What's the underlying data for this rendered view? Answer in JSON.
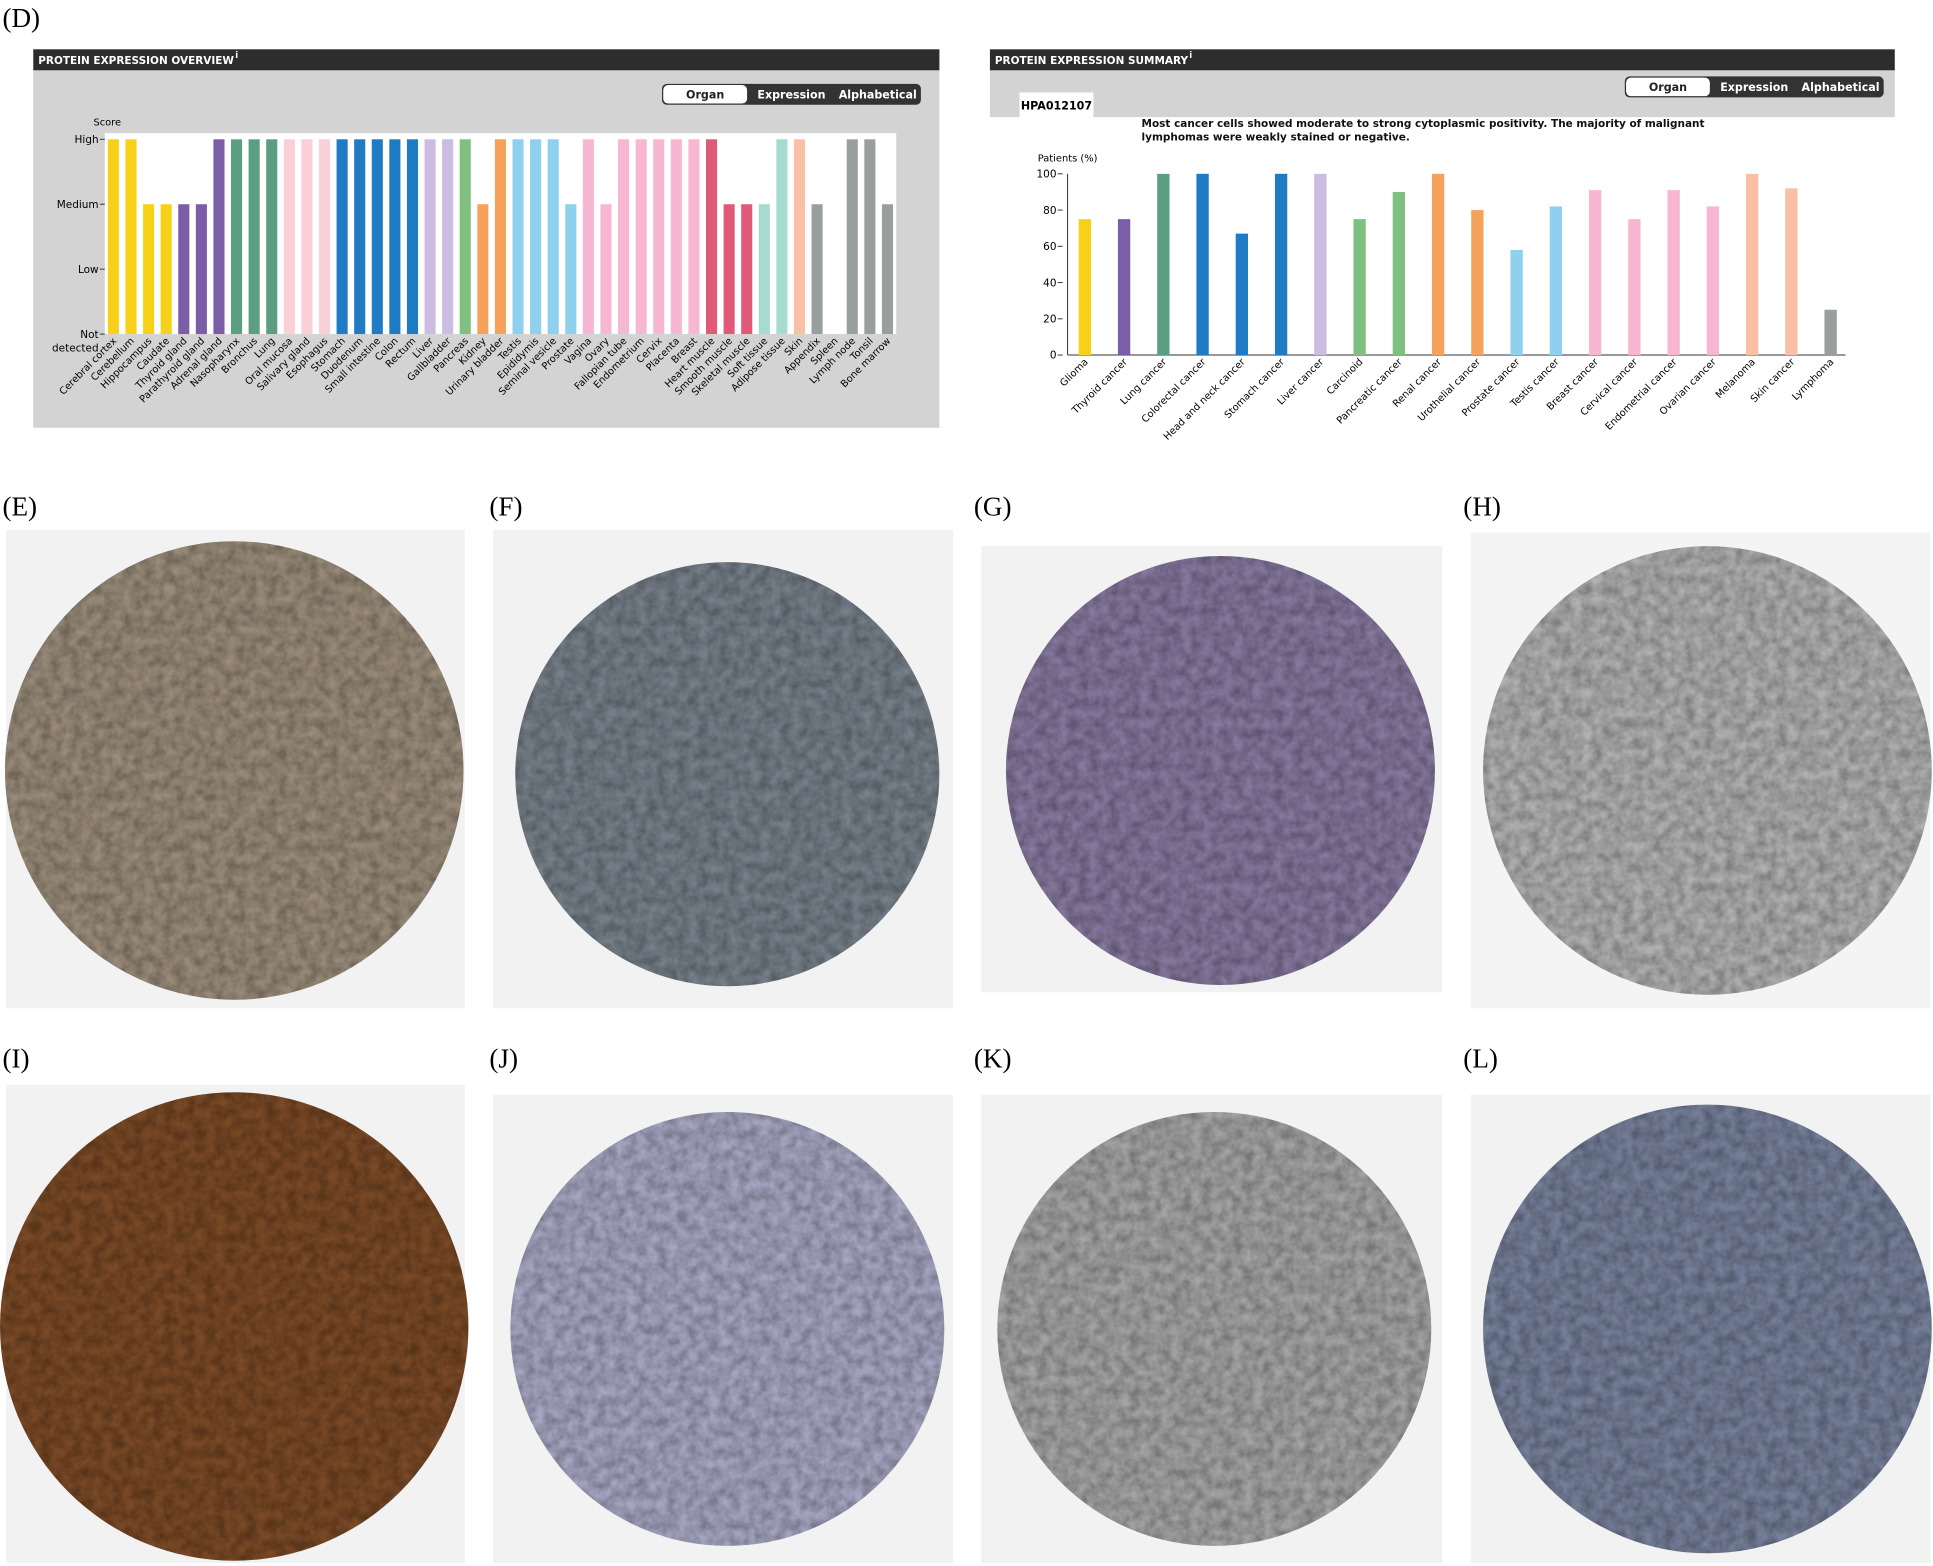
{
  "panel_labels": [
    "(D)",
    "(E)",
    "(F)",
    "(G)",
    "(H)",
    "(I)",
    "(J)",
    "(K)",
    "(L)"
  ],
  "chart_data": [
    {
      "type": "bar",
      "title": "PROTEIN EXPRESSION OVERVIEW",
      "info": "i",
      "buttons": [
        "Organ",
        "Expression",
        "Alphabetical"
      ],
      "y_label": "Score",
      "categories": [
        "Cerebral cortex",
        "Cerebellum",
        "Hippocampus",
        "Caudate",
        "Thyroid gland",
        "Parathyroid gland",
        "Adrenal gland",
        "Nasopharynx",
        "Bronchus",
        "Lung",
        "Oral mucosa",
        "Salivary gland",
        "Esophagus",
        "Stomach",
        "Duodenum",
        "Small intestine",
        "Colon",
        "Rectum",
        "Liver",
        "Gallbladder",
        "Pancreas",
        "Kidney",
        "Urinary bladder",
        "Testis",
        "Epididymis",
        "Seminal vesicle",
        "Prostate",
        "Vagina",
        "Ovary",
        "Fallopian tube",
        "Endometrium",
        "Cervix",
        "Placenta",
        "Breast",
        "Heart muscle",
        "Smooth muscle",
        "Skeletal muscle",
        "Soft tissue",
        "Adipose tissue",
        "Skin",
        "Appendix",
        "Spleen",
        "Lymph node",
        "Tonsil",
        "Bone marrow"
      ],
      "values": [
        3,
        3,
        2,
        2,
        2,
        2,
        3,
        3,
        3,
        3,
        3,
        3,
        3,
        3,
        3,
        3,
        3,
        3,
        3,
        3,
        3,
        2,
        3,
        3,
        3,
        3,
        2,
        3,
        2,
        3,
        3,
        3,
        3,
        3,
        3,
        2,
        2,
        2,
        3,
        3,
        2,
        0,
        3,
        3,
        2
      ],
      "colors": [
        "#f7d117",
        "#f7d117",
        "#f7d117",
        "#f7d117",
        "#7b5ea7",
        "#7b5ea7",
        "#7b5ea7",
        "#5c9e82",
        "#5c9e82",
        "#5c9e82",
        "#f9d0d6",
        "#f9d0d6",
        "#f9d0d6",
        "#1f7cc4",
        "#1f7cc4",
        "#1f7cc4",
        "#1f7cc4",
        "#1f7cc4",
        "#cbbde2",
        "#cbbde2",
        "#7fbf7f",
        "#f5a25d",
        "#f5a25d",
        "#8fd0ef",
        "#8fd0ef",
        "#8fd0ef",
        "#8fd0ef",
        "#f7b6d2",
        "#f7b6d2",
        "#f7b6d2",
        "#f7b6d2",
        "#f7b6d2",
        "#f7b6d2",
        "#f7b6d2",
        "#e05a78",
        "#e05a78",
        "#e05a78",
        "#a6dcd0",
        "#a6dcd0",
        "#f9c0a6",
        "#999f9f",
        "#999f9f",
        "#999f9f",
        "#999f9f",
        "#999f9f"
      ],
      "ylim": [
        0,
        3
      ],
      "yticks": [
        {
          "value": 0,
          "label": "Not detected"
        },
        {
          "value": 1,
          "label": "Low"
        },
        {
          "value": 2,
          "label": "Medium"
        },
        {
          "value": 3,
          "label": "High"
        }
      ]
    },
    {
      "type": "bar",
      "title": "PROTEIN EXPRESSION SUMMARY",
      "info": "i",
      "buttons": [
        "Organ",
        "Expression",
        "Alphabetical"
      ],
      "antibody": "HPA012107",
      "description": "Most cancer cells showed moderate to strong cytoplasmic positivity. The majority of malignant lymphomas were weakly stained or negative.",
      "y_label": "Patients (%)",
      "categories": [
        "Glioma",
        "Thyroid cancer",
        "Lung cancer",
        "Colorectal cancer",
        "Head and neck cancer",
        "Stomach cancer",
        "Liver cancer",
        "Carcinoid",
        "Pancreatic cancer",
        "Renal cancer",
        "Urothelial cancer",
        "Prostate cancer",
        "Testis cancer",
        "Breast cancer",
        "Cervical cancer",
        "Endometrial cancer",
        "Ovarian cancer",
        "Melanoma",
        "Skin cancer",
        "Lymphoma"
      ],
      "values": [
        75,
        75,
        100,
        100,
        67,
        100,
        100,
        75,
        90,
        100,
        80,
        58,
        82,
        91,
        75,
        91,
        82,
        100,
        92,
        25
      ],
      "colors": [
        "#f7d117",
        "#7b5ea7",
        "#5c9e82",
        "#1f7cc4",
        "#1f7cc4",
        "#1f7cc4",
        "#cbbde2",
        "#7fbf7f",
        "#7fbf7f",
        "#f5a25d",
        "#f5a25d",
        "#8fd0ef",
        "#8fd0ef",
        "#f7b6d2",
        "#f7b6d2",
        "#f7b6d2",
        "#f7b6d2",
        "#f9c0a6",
        "#f9c0a6",
        "#999f9f"
      ],
      "ylim": [
        0,
        100
      ],
      "yticks": [
        0,
        20,
        40,
        60,
        80,
        100
      ]
    }
  ]
}
